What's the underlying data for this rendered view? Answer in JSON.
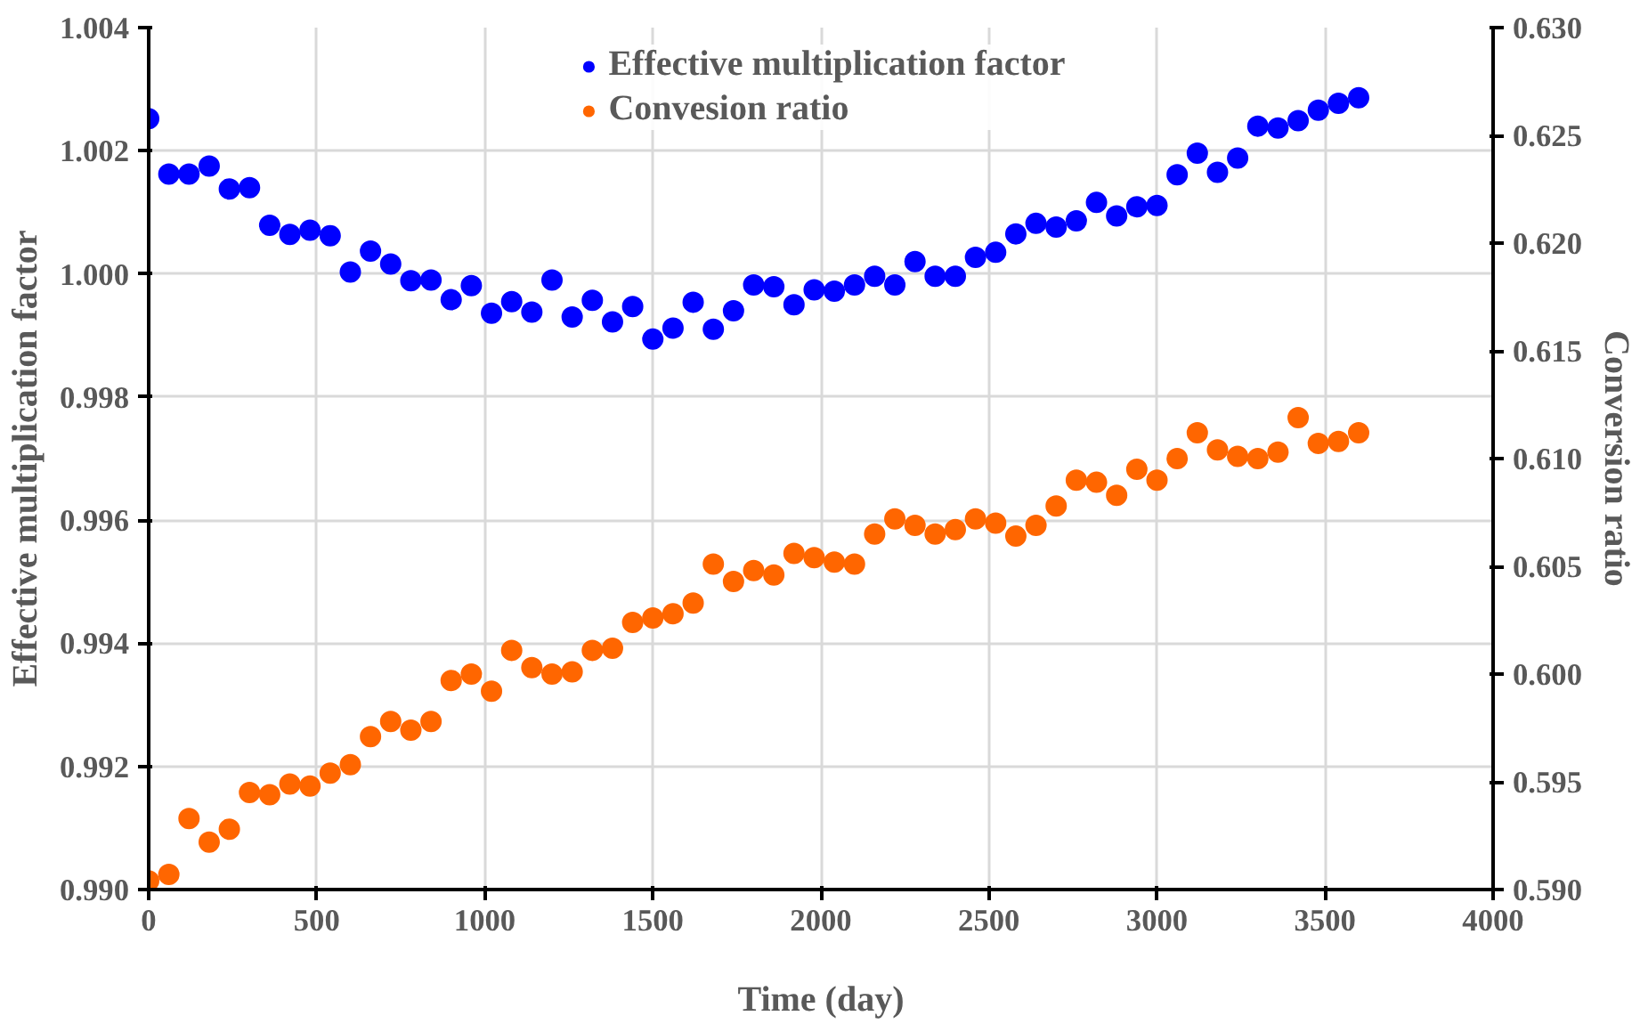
{
  "chart_data": {
    "type": "scatter",
    "xlabel": "Time (day)",
    "ylabel": "Effective multiplication factor",
    "y2label": "Conversion ratio",
    "x": [
      0,
      60,
      120,
      180,
      240,
      300,
      360,
      420,
      480,
      540,
      600,
      660,
      720,
      780,
      840,
      900,
      960,
      1020,
      1080,
      1140,
      1200,
      1260,
      1320,
      1380,
      1440,
      1500,
      1560,
      1620,
      1680,
      1740,
      1800,
      1860,
      1920,
      1980,
      2040,
      2100,
      2160,
      2220,
      2280,
      2340,
      2400,
      2460,
      2520,
      2580,
      2640,
      2700,
      2760,
      2820,
      2880,
      2940,
      3000,
      3060,
      3120,
      3180,
      3240,
      3300,
      3360,
      3420,
      3480,
      3540,
      3600
    ],
    "series": [
      {
        "name": "Effective multiplication factor",
        "color": "#0000ff",
        "values": [
          1.00252,
          1.00162,
          1.00162,
          1.00175,
          1.00138,
          1.0014,
          1.00079,
          1.00064,
          1.00071,
          1.00062,
          1.00003,
          1.00037,
          1.00016,
          0.99989,
          0.9999,
          0.99958,
          0.99981,
          0.99936,
          0.99955,
          0.99938,
          0.9999,
          0.9993,
          0.99957,
          0.99922,
          0.99947,
          0.99894,
          0.99912,
          0.99954,
          0.9991,
          0.9994,
          0.99982,
          0.99979,
          0.9995,
          0.99974,
          0.99972,
          0.99982,
          0.99996,
          0.99982,
          1.0002,
          0.99996,
          0.99996,
          1.00027,
          1.00035,
          1.00065,
          1.00082,
          1.00076,
          1.00086,
          1.00116,
          1.00094,
          1.00109,
          1.00111,
          1.00161,
          1.00196,
          1.00165,
          1.00188,
          1.0024,
          1.00237,
          1.00249,
          1.00266,
          1.00277,
          1.00286
        ]
      },
      {
        "name": "Convesion ratio",
        "color": "#ff6600",
        "axis": "y2",
        "values": [
          0.5904,
          0.5907,
          0.5933,
          0.5922,
          0.5928,
          0.5945,
          0.5944,
          0.5949,
          0.5948,
          0.5954,
          0.5958,
          0.5971,
          0.5978,
          0.5974,
          0.5978,
          0.5997,
          0.6,
          0.5992,
          0.6011,
          0.6003,
          0.6,
          0.6001,
          0.6011,
          0.6012,
          0.6024,
          0.6026,
          0.6028,
          0.6033,
          0.6051,
          0.6043,
          0.6048,
          0.6046,
          0.6056,
          0.6054,
          0.6052,
          0.6051,
          0.6065,
          0.6072,
          0.6069,
          0.6065,
          0.6067,
          0.6072,
          0.607,
          0.6064,
          0.6069,
          0.6078,
          0.609,
          0.6089,
          0.6083,
          0.6095,
          0.609,
          0.61,
          0.6112,
          0.6104,
          0.6101,
          0.61,
          0.6103,
          0.6119,
          0.6107,
          0.6108,
          0.6112
        ]
      }
    ],
    "xlim": [
      0,
      4000
    ],
    "xticks": [
      0,
      500,
      1000,
      1500,
      2000,
      2500,
      3000,
      3500,
      4000
    ],
    "ylim": [
      0.99,
      1.004
    ],
    "yticks": [
      {
        "value": 0.99,
        "label": "0.990"
      },
      {
        "value": 0.992,
        "label": "0.992"
      },
      {
        "value": 0.994,
        "label": "0.994"
      },
      {
        "value": 0.996,
        "label": "0.996"
      },
      {
        "value": 0.998,
        "label": "0.998"
      },
      {
        "value": 1.0,
        "label": "1.000"
      },
      {
        "value": 1.002,
        "label": "1.002"
      },
      {
        "value": 1.004,
        "label": "1.004"
      }
    ],
    "y2lim": [
      0.59,
      0.63
    ],
    "y2ticks": [
      {
        "value": 0.59,
        "label": "0.590"
      },
      {
        "value": 0.595,
        "label": "0.595"
      },
      {
        "value": 0.6,
        "label": "0.600"
      },
      {
        "value": 0.605,
        "label": "0.605"
      },
      {
        "value": 0.61,
        "label": "0.610"
      },
      {
        "value": 0.615,
        "label": "0.615"
      },
      {
        "value": 0.62,
        "label": "0.620"
      },
      {
        "value": 0.625,
        "label": "0.625"
      },
      {
        "value": 0.63,
        "label": "0.630"
      }
    ],
    "grid": true,
    "legend": "top",
    "marker": "circle"
  }
}
